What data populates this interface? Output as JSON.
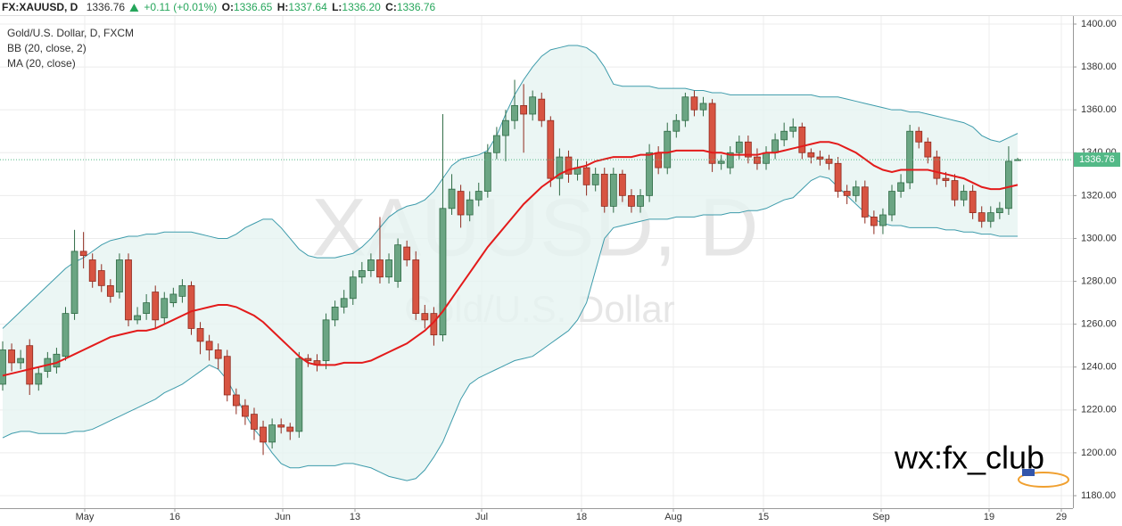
{
  "header": {
    "symbol": "FX:XAUUSD, D",
    "price": "1336.76",
    "change": "+0.11 (+0.01%)",
    "fields": [
      {
        "label": "O:",
        "value": "1336.65"
      },
      {
        "label": "H:",
        "value": "1337.64"
      },
      {
        "label": "L:",
        "value": "1336.20"
      },
      {
        "label": "C:",
        "value": "1336.76"
      }
    ]
  },
  "legend": [
    "Gold/U.S. Dollar, D, FXCM",
    "BB (20, close, 2)",
    "MA (20, close)"
  ],
  "watermark": {
    "symbol": "XAUUSD, D",
    "name": "Gold/U.S. Dollar"
  },
  "overlay_text": "wx:fx_club",
  "chart_data": {
    "type": "candlestick",
    "x_labels": [
      "May",
      "16",
      "Jun",
      "13",
      "Jul",
      "18",
      "Aug",
      "15",
      "Sep",
      "19",
      "29"
    ],
    "ylim": [
      1180,
      1400
    ],
    "yticks": [
      {
        "value": 1180,
        "label": "1180.00"
      },
      {
        "value": 1200,
        "label": "1200.00"
      },
      {
        "value": 1220,
        "label": "1220.00"
      },
      {
        "value": 1240,
        "label": "1240.00"
      },
      {
        "value": 1260,
        "label": "1260.00"
      },
      {
        "value": 1280,
        "label": "1280.00"
      },
      {
        "value": 1300,
        "label": "1300.00"
      },
      {
        "value": 1320,
        "label": "1320.00"
      },
      {
        "value": 1340,
        "label": "1340.00"
      },
      {
        "value": 1360,
        "label": "1360.00"
      },
      {
        "value": 1380,
        "label": "1380.00"
      },
      {
        "value": 1400,
        "label": "1400.00"
      }
    ],
    "grid": true,
    "up_color": "#6ba583",
    "down_color": "#d75442",
    "current_price": {
      "value": 1336.76,
      "label": "1336.76",
      "color": "#53b987"
    },
    "open": [
      1232,
      1248,
      1242,
      1250,
      1232,
      1238,
      1240,
      1245,
      1265,
      1294,
      1290,
      1285,
      1278,
      1275,
      1290,
      1262,
      1265,
      1275,
      1263,
      1270,
      1273,
      1278,
      1258,
      1252,
      1248,
      1245,
      1227,
      1222,
      1218,
      1212,
      1205,
      1213,
      1212,
      1210,
      1244,
      1243,
      1243,
      1262,
      1268,
      1272,
      1282,
      1285,
      1290,
      1282,
      1280,
      1296,
      1290,
      1265,
      1265,
      1255,
      1314,
      1322,
      1311,
      1318,
      1322,
      1340,
      1348,
      1355,
      1362,
      1358,
      1365,
      1355,
      1328,
      1338,
      1330,
      1333,
      1325,
      1330,
      1315,
      1330,
      1320,
      1315,
      1320,
      1340,
      1333,
      1350,
      1355,
      1366,
      1360,
      1363,
      1335,
      1333,
      1340,
      1345,
      1338,
      1335,
      1340,
      1346,
      1350,
      1352,
      1340,
      1338,
      1337,
      1335,
      1322,
      1320,
      1324,
      1310,
      1306,
      1311,
      1322,
      1326,
      1350,
      1345,
      1338,
      1328,
      1327,
      1318,
      1322,
      1312,
      1308,
      1312,
      1314,
      1336.65
    ],
    "high": [
      1252,
      1251,
      1248,
      1253,
      1240,
      1247,
      1249,
      1268,
      1304,
      1303,
      1293,
      1288,
      1281,
      1293,
      1293,
      1268,
      1274,
      1278,
      1275,
      1277,
      1281,
      1280,
      1261,
      1255,
      1251,
      1248,
      1230,
      1225,
      1221,
      1215,
      1216,
      1216,
      1214,
      1247,
      1246,
      1246,
      1265,
      1271,
      1276,
      1285,
      1289,
      1293,
      1310,
      1293,
      1300,
      1299,
      1294,
      1269,
      1268,
      1358,
      1330,
      1325,
      1322,
      1326,
      1344,
      1352,
      1360,
      1374,
      1372,
      1369,
      1368,
      1357,
      1342,
      1341,
      1337,
      1336,
      1333,
      1333,
      1333,
      1332,
      1323,
      1323,
      1344,
      1343,
      1354,
      1358,
      1368,
      1369,
      1366,
      1365,
      1339,
      1343,
      1348,
      1348,
      1342,
      1343,
      1349,
      1354,
      1356,
      1354,
      1342,
      1341,
      1339,
      1338,
      1325,
      1327,
      1327,
      1313,
      1314,
      1325,
      1330,
      1353,
      1352,
      1347,
      1341,
      1331,
      1330,
      1325,
      1325,
      1315,
      1315,
      1317,
      1343,
      1337.64
    ],
    "low": [
      1229,
      1238,
      1239,
      1227,
      1229,
      1235,
      1237,
      1243,
      1262,
      1286,
      1277,
      1275,
      1270,
      1272,
      1259,
      1260,
      1262,
      1258,
      1260,
      1268,
      1270,
      1255,
      1246,
      1243,
      1239,
      1224,
      1218,
      1213,
      1206,
      1199,
      1202,
      1209,
      1206,
      1207,
      1240,
      1238,
      1239,
      1259,
      1265,
      1269,
      1279,
      1282,
      1279,
      1279,
      1277,
      1287,
      1262,
      1258,
      1250,
      1252,
      1311,
      1305,
      1308,
      1315,
      1319,
      1337,
      1336,
      1351,
      1340,
      1355,
      1352,
      1324,
      1320,
      1326,
      1327,
      1320,
      1322,
      1312,
      1312,
      1317,
      1312,
      1312,
      1317,
      1330,
      1330,
      1347,
      1352,
      1357,
      1357,
      1331,
      1332,
      1330,
      1337,
      1335,
      1332,
      1332,
      1337,
      1343,
      1347,
      1337,
      1335,
      1334,
      1332,
      1319,
      1316,
      1317,
      1307,
      1302,
      1302,
      1308,
      1319,
      1323,
      1342,
      1335,
      1325,
      1324,
      1315,
      1315,
      1309,
      1305,
      1305,
      1309,
      1311,
      1336.2
    ],
    "close": [
      1248,
      1242,
      1244,
      1232,
      1237,
      1244,
      1246,
      1265,
      1294,
      1292,
      1280,
      1278,
      1273,
      1290,
      1262,
      1264,
      1270,
      1262,
      1272,
      1274,
      1278,
      1258,
      1252,
      1248,
      1244,
      1227,
      1222,
      1217,
      1211,
      1205,
      1213,
      1212,
      1210,
      1244,
      1243,
      1241,
      1262,
      1268,
      1272,
      1282,
      1285,
      1290,
      1282,
      1290,
      1297,
      1290,
      1265,
      1262,
      1255,
      1314,
      1323,
      1311,
      1318,
      1322,
      1340,
      1348,
      1355,
      1362,
      1358,
      1366,
      1355,
      1328,
      1338,
      1330,
      1333,
      1325,
      1330,
      1315,
      1330,
      1320,
      1315,
      1320,
      1340,
      1333,
      1350,
      1355,
      1366,
      1360,
      1363,
      1335,
      1336,
      1340,
      1345,
      1338,
      1335,
      1340,
      1346,
      1350,
      1352,
      1340,
      1338,
      1337,
      1335,
      1322,
      1320,
      1324,
      1310,
      1306,
      1311,
      1322,
      1326,
      1350,
      1345,
      1338,
      1328,
      1327,
      1318,
      1322,
      1312,
      1308,
      1312,
      1314,
      1336,
      1336.76
    ],
    "bands": {
      "color": "#3d9bab",
      "fill": "#e6f4f1",
      "upper": [
        1258,
        1262,
        1266,
        1270,
        1274,
        1278,
        1282,
        1286,
        1289,
        1291,
        1294,
        1297,
        1299,
        1300,
        1301,
        1301,
        1302,
        1302,
        1303,
        1303,
        1303,
        1303,
        1302,
        1301,
        1300,
        1300,
        1302,
        1305,
        1307,
        1309,
        1309,
        1305,
        1300,
        1295,
        1292,
        1291,
        1291,
        1291,
        1292,
        1293,
        1296,
        1300,
        1305,
        1310,
        1313,
        1315,
        1316,
        1318,
        1322,
        1328,
        1334,
        1337,
        1338,
        1339,
        1341,
        1348,
        1358,
        1367,
        1374,
        1380,
        1385,
        1388,
        1389,
        1390,
        1390,
        1389,
        1386,
        1380,
        1372,
        1371,
        1371,
        1371,
        1371,
        1370,
        1370,
        1370,
        1370,
        1369,
        1369,
        1368,
        1368,
        1367,
        1367,
        1367,
        1367,
        1367,
        1367,
        1367,
        1367,
        1367,
        1367,
        1366,
        1366,
        1366,
        1365,
        1364,
        1363,
        1362,
        1361,
        1360,
        1360,
        1359,
        1359,
        1358,
        1357,
        1356,
        1355,
        1354,
        1352,
        1348,
        1346,
        1345,
        1347,
        1349
      ],
      "lower": [
        1207,
        1209,
        1210,
        1210,
        1209,
        1209,
        1209,
        1209,
        1210,
        1210,
        1211,
        1213,
        1215,
        1217,
        1219,
        1221,
        1223,
        1225,
        1228,
        1230,
        1232,
        1235,
        1238,
        1241,
        1239,
        1234,
        1226,
        1218,
        1211,
        1206,
        1200,
        1195,
        1193,
        1193,
        1194,
        1194,
        1194,
        1194,
        1195,
        1195,
        1194,
        1193,
        1191,
        1189,
        1188,
        1187,
        1188,
        1192,
        1198,
        1205,
        1215,
        1225,
        1232,
        1235,
        1237,
        1239,
        1241,
        1243,
        1244,
        1245,
        1248,
        1251,
        1254,
        1257,
        1262,
        1270,
        1285,
        1300,
        1305,
        1306,
        1307,
        1308,
        1309,
        1309,
        1309,
        1310,
        1310,
        1310,
        1311,
        1311,
        1311,
        1312,
        1312,
        1313,
        1313,
        1314,
        1316,
        1318,
        1319,
        1323,
        1327,
        1329,
        1328,
        1324,
        1320,
        1316,
        1312,
        1309,
        1307,
        1306,
        1306,
        1305,
        1305,
        1305,
        1305,
        1304,
        1304,
        1303,
        1303,
        1302,
        1302,
        1301,
        1301,
        1301
      ]
    },
    "ma": {
      "color": "#e31b1b",
      "values": [
        1236,
        1237,
        1238,
        1239,
        1240,
        1241,
        1242,
        1244,
        1246,
        1248,
        1250,
        1252,
        1254,
        1255,
        1256,
        1257,
        1257,
        1258,
        1260,
        1262,
        1264,
        1266,
        1267,
        1268,
        1269,
        1269,
        1268,
        1266,
        1264,
        1261,
        1257,
        1253,
        1249,
        1245,
        1242,
        1241,
        1241,
        1241,
        1242,
        1242,
        1242,
        1243,
        1245,
        1247,
        1249,
        1251,
        1254,
        1257,
        1261,
        1266,
        1272,
        1278,
        1284,
        1290,
        1296,
        1301,
        1306,
        1311,
        1316,
        1320,
        1324,
        1327,
        1330,
        1332,
        1333,
        1334,
        1336,
        1337,
        1338,
        1338,
        1338,
        1339,
        1339,
        1340,
        1340,
        1341,
        1341,
        1341,
        1341,
        1340,
        1340,
        1339,
        1339,
        1339,
        1339,
        1340,
        1340,
        1341,
        1342,
        1343,
        1344,
        1345,
        1345,
        1344,
        1342,
        1340,
        1337,
        1334,
        1332,
        1331,
        1332,
        1332,
        1332,
        1332,
        1331,
        1330,
        1329,
        1328,
        1326,
        1324,
        1323,
        1323,
        1324,
        1325
      ]
    }
  }
}
